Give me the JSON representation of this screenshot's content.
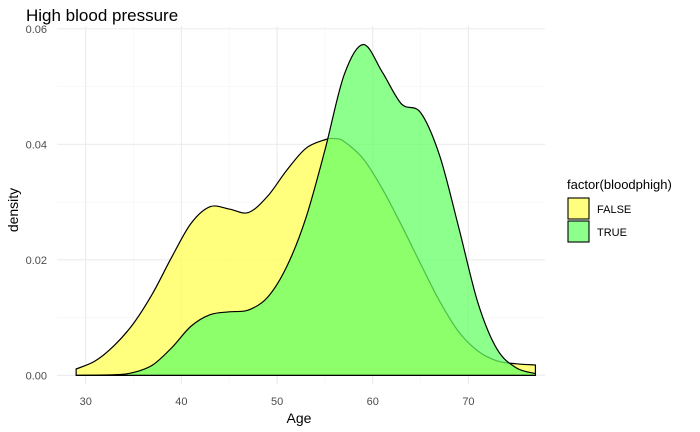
{
  "chart_data": {
    "type": "area",
    "title": "High blood pressure",
    "xlabel": "Age",
    "ylabel": "density",
    "xlim": [
      27,
      78
    ],
    "ylim": [
      -0.0015,
      0.0605
    ],
    "x_ticks": [
      30,
      40,
      50,
      60,
      70
    ],
    "x_tick_labels": [
      "30",
      "40",
      "50",
      "60",
      "70"
    ],
    "y_ticks": [
      0,
      0.02,
      0.04,
      0.06
    ],
    "y_tick_labels": [
      "0.00",
      "0.02",
      "0.04",
      "0.06"
    ],
    "grid": true,
    "legend": {
      "title": "factor(bloodphigh)",
      "position": "right"
    },
    "series": [
      {
        "name": "FALSE",
        "color": "#ffff66",
        "alpha": 0.85,
        "x": [
          29,
          31,
          33,
          35,
          37,
          39,
          41,
          43,
          45,
          47,
          49,
          51,
          53,
          55,
          56,
          57,
          59,
          61,
          63,
          65,
          67,
          69,
          71,
          73,
          75,
          77
        ],
        "y": [
          0.0011,
          0.0025,
          0.0052,
          0.009,
          0.0142,
          0.0205,
          0.0263,
          0.0292,
          0.0288,
          0.0282,
          0.031,
          0.0355,
          0.0393,
          0.0408,
          0.041,
          0.0405,
          0.0375,
          0.0323,
          0.026,
          0.0193,
          0.0128,
          0.0075,
          0.0042,
          0.0025,
          0.002,
          0.0018
        ]
      },
      {
        "name": "TRUE",
        "color": "#66ff66",
        "alpha": 0.75,
        "x": [
          29,
          33,
          35,
          37,
          39,
          41,
          43,
          45,
          47,
          49,
          51,
          53,
          55,
          57,
          59,
          61,
          63,
          65,
          67,
          69,
          71,
          73,
          75,
          77
        ],
        "y": [
          0,
          0.0001,
          0.0005,
          0.0018,
          0.0048,
          0.0085,
          0.0105,
          0.011,
          0.0113,
          0.0135,
          0.0188,
          0.0272,
          0.039,
          0.052,
          0.0573,
          0.0525,
          0.047,
          0.0455,
          0.038,
          0.0255,
          0.0125,
          0.0045,
          0.0013,
          0.0003
        ]
      }
    ]
  }
}
